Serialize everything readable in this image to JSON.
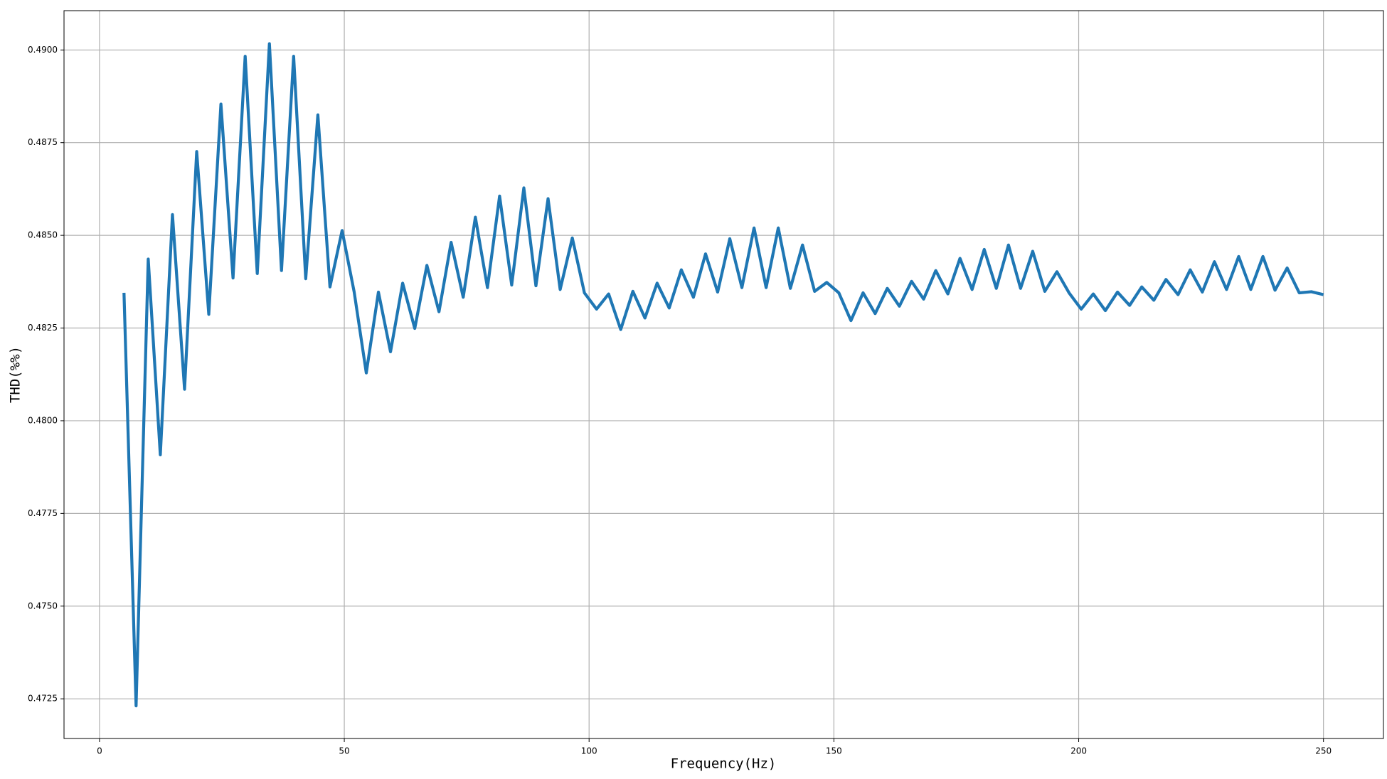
{
  "chart_data": {
    "type": "line",
    "xlabel": "Frequency(Hz)",
    "ylabel": "THD(%%)",
    "color": "#1f77b4",
    "label_color": "#4682b4",
    "grid": true,
    "xlim": [
      -7.25,
      262.25
    ],
    "ylim": [
      0.47143,
      0.49106
    ],
    "xticks": [
      0,
      50,
      100,
      150,
      200,
      250
    ],
    "yticks": [
      0.4725,
      {
        "value": 0.475,
        "label": "0.4750"
      },
      0.4775,
      {
        "value": 0.48,
        "label": "0.4800"
      },
      0.4825,
      {
        "value": 0.485,
        "label": "0.4850"
      },
      0.4875,
      {
        "value": 0.49,
        "label": "0.4900"
      }
    ],
    "x": [
      5,
      7.47,
      9.95,
      12.42,
      14.9,
      17.37,
      19.85,
      22.32,
      24.8,
      27.27,
      29.75,
      32.22,
      34.7,
      37.17,
      39.65,
      42.12,
      44.6,
      47.07,
      49.55,
      52.02,
      54.49,
      56.97,
      59.44,
      61.92,
      64.39,
      66.87,
      69.34,
      71.82,
      74.29,
      76.77,
      79.24,
      81.72,
      84.19,
      86.67,
      89.14,
      91.62,
      94.09,
      96.57,
      99.04,
      101.52,
      103.99,
      106.46,
      108.94,
      111.41,
      113.89,
      116.36,
      118.84,
      121.31,
      123.79,
      126.26,
      128.74,
      131.21,
      133.69,
      136.16,
      138.64,
      141.11,
      143.59,
      146.06,
      148.54,
      151.01,
      153.48,
      155.96,
      158.43,
      160.91,
      163.38,
      165.86,
      168.33,
      170.81,
      173.28,
      175.76,
      178.23,
      180.71,
      183.18,
      185.66,
      188.13,
      190.61,
      193.08,
      195.56,
      198.03,
      200.51,
      202.98,
      205.45,
      207.93,
      210.4,
      212.88,
      215.35,
      217.83,
      220.3,
      222.78,
      225.25,
      227.73,
      230.2,
      232.68,
      235.15,
      237.63,
      240.1,
      242.58,
      245.05,
      247.53,
      250
    ],
    "values": [
      0.48345,
      0.47231,
      0.48436,
      0.47908,
      0.48556,
      0.48085,
      0.48726,
      0.48287,
      0.48854,
      0.48385,
      0.48983,
      0.48397,
      0.49017,
      0.48405,
      0.48983,
      0.48383,
      0.48825,
      0.48361,
      0.48513,
      0.48347,
      0.48129,
      0.48347,
      0.48186,
      0.48371,
      0.48249,
      0.48419,
      0.48294,
      0.48481,
      0.48333,
      0.48549,
      0.48359,
      0.48606,
      0.48366,
      0.48628,
      0.48364,
      0.48599,
      0.48354,
      0.48493,
      0.48345,
      0.48301,
      0.48342,
      0.48246,
      0.48349,
      0.48277,
      0.48371,
      0.48304,
      0.48407,
      0.48333,
      0.4845,
      0.48347,
      0.48491,
      0.48359,
      0.4852,
      0.48359,
      0.4852,
      0.48357,
      0.48474,
      0.48349,
      0.48373,
      0.48345,
      0.4827,
      0.48345,
      0.48289,
      0.48357,
      0.48309,
      0.48376,
      0.48328,
      0.48405,
      0.48342,
      0.48438,
      0.48354,
      0.48462,
      0.48357,
      0.48474,
      0.48357,
      0.48457,
      0.48349,
      0.48402,
      0.48345,
      0.48301,
      0.48342,
      0.48297,
      0.48347,
      0.48311,
      0.48361,
      0.48325,
      0.48381,
      0.4834,
      0.48407,
      0.48347,
      0.48429,
      0.48354,
      0.48443,
      0.48354,
      0.48443,
      0.48352,
      0.48412,
      0.48345,
      0.48348,
      0.4834
    ]
  }
}
